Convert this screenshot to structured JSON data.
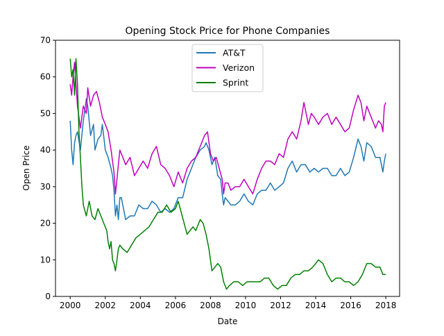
{
  "chart_data": {
    "type": "line",
    "title": "Opening Stock Price for Phone Companies",
    "xlabel": "Date",
    "ylabel": "Open Price",
    "xlim": [
      "1999-03-01",
      "2018-10-15"
    ],
    "ylim": [
      0,
      70
    ],
    "x_ticks": [
      "2000",
      "2002",
      "2004",
      "2006",
      "2008",
      "2010",
      "2012",
      "2014",
      "2016",
      "2018"
    ],
    "y_ticks": [
      "0",
      "10",
      "20",
      "30",
      "40",
      "50",
      "60",
      "70"
    ],
    "grid": false,
    "legend_position": "upper center",
    "series": [
      {
        "name": "AT&T",
        "color": "#1f77b4",
        "points": [
          [
            "2000-01-01",
            48
          ],
          [
            "2000-02-01",
            40
          ],
          [
            "2000-03-01",
            36
          ],
          [
            "2000-04-01",
            42
          ],
          [
            "2000-05-01",
            44
          ],
          [
            "2000-06-01",
            45
          ],
          [
            "2000-08-01",
            40
          ],
          [
            "2000-10-01",
            48
          ],
          [
            "2000-12-01",
            54
          ],
          [
            "2001-01-01",
            52
          ],
          [
            "2001-03-01",
            44
          ],
          [
            "2001-05-01",
            47
          ],
          [
            "2001-06-01",
            40
          ],
          [
            "2001-08-01",
            43
          ],
          [
            "2001-10-01",
            44
          ],
          [
            "2001-11-01",
            47
          ],
          [
            "2002-01-01",
            40
          ],
          [
            "2002-03-01",
            38
          ],
          [
            "2002-05-01",
            35
          ],
          [
            "2002-06-01",
            33
          ],
          [
            "2002-07-01",
            29
          ],
          [
            "2002-08-01",
            22
          ],
          [
            "2002-09-01",
            25
          ],
          [
            "2002-10-01",
            21
          ],
          [
            "2002-11-01",
            27
          ],
          [
            "2002-12-01",
            27
          ],
          [
            "2003-03-01",
            21
          ],
          [
            "2003-06-01",
            22
          ],
          [
            "2003-09-01",
            22
          ],
          [
            "2003-12-01",
            25
          ],
          [
            "2004-03-01",
            24
          ],
          [
            "2004-06-01",
            24
          ],
          [
            "2004-09-01",
            26
          ],
          [
            "2004-12-01",
            25
          ],
          [
            "2005-03-01",
            23
          ],
          [
            "2005-06-01",
            24
          ],
          [
            "2005-09-01",
            23
          ],
          [
            "2005-12-01",
            24
          ],
          [
            "2006-03-01",
            27
          ],
          [
            "2006-06-01",
            27
          ],
          [
            "2006-09-01",
            32
          ],
          [
            "2006-12-01",
            35
          ],
          [
            "2007-03-01",
            38
          ],
          [
            "2007-06-01",
            40
          ],
          [
            "2007-09-01",
            41
          ],
          [
            "2007-10-01",
            42
          ],
          [
            "2007-12-01",
            40
          ],
          [
            "2008-02-01",
            36
          ],
          [
            "2008-04-01",
            38
          ],
          [
            "2008-06-01",
            33
          ],
          [
            "2008-08-01",
            32
          ],
          [
            "2008-09-01",
            28
          ],
          [
            "2008-10-01",
            25
          ],
          [
            "2008-11-01",
            27
          ],
          [
            "2009-01-01",
            26
          ],
          [
            "2009-03-01",
            25
          ],
          [
            "2009-06-01",
            25
          ],
          [
            "2009-09-01",
            26
          ],
          [
            "2009-12-01",
            28
          ],
          [
            "2010-03-01",
            26
          ],
          [
            "2010-06-01",
            25
          ],
          [
            "2010-09-01",
            28
          ],
          [
            "2010-12-01",
            29
          ],
          [
            "2011-03-01",
            29
          ],
          [
            "2011-06-01",
            31
          ],
          [
            "2011-09-01",
            29
          ],
          [
            "2011-12-01",
            30
          ],
          [
            "2012-03-01",
            31
          ],
          [
            "2012-06-01",
            35
          ],
          [
            "2012-09-01",
            37
          ],
          [
            "2012-12-01",
            34
          ],
          [
            "2013-03-01",
            36
          ],
          [
            "2013-06-01",
            36
          ],
          [
            "2013-09-01",
            34
          ],
          [
            "2013-12-01",
            35
          ],
          [
            "2014-03-01",
            34
          ],
          [
            "2014-06-01",
            35
          ],
          [
            "2014-09-01",
            35
          ],
          [
            "2014-12-01",
            33
          ],
          [
            "2015-03-01",
            33
          ],
          [
            "2015-06-01",
            35
          ],
          [
            "2015-09-01",
            33
          ],
          [
            "2015-12-01",
            34
          ],
          [
            "2016-03-01",
            38
          ],
          [
            "2016-06-01",
            43
          ],
          [
            "2016-08-01",
            41
          ],
          [
            "2016-10-01",
            37
          ],
          [
            "2016-12-01",
            42
          ],
          [
            "2017-03-01",
            41
          ],
          [
            "2017-06-01",
            38
          ],
          [
            "2017-09-01",
            38
          ],
          [
            "2017-11-01",
            34
          ],
          [
            "2017-12-01",
            37
          ],
          [
            "2018-01-01",
            39
          ]
        ]
      },
      {
        "name": "Verizon",
        "color": "#bf00bf",
        "points": [
          [
            "2000-01-01",
            58
          ],
          [
            "2000-02-01",
            55
          ],
          [
            "2000-03-01",
            60
          ],
          [
            "2000-04-01",
            64
          ],
          [
            "2000-05-01",
            58
          ],
          [
            "2000-06-01",
            52
          ],
          [
            "2000-08-01",
            46
          ],
          [
            "2000-10-01",
            52
          ],
          [
            "2000-12-01",
            50
          ],
          [
            "2001-01-01",
            57
          ],
          [
            "2001-03-01",
            52
          ],
          [
            "2001-05-01",
            55
          ],
          [
            "2001-07-01",
            56
          ],
          [
            "2001-09-01",
            53
          ],
          [
            "2001-11-01",
            49
          ],
          [
            "2002-01-01",
            47
          ],
          [
            "2002-03-01",
            45
          ],
          [
            "2002-05-01",
            40
          ],
          [
            "2002-07-01",
            34
          ],
          [
            "2002-08-01",
            28
          ],
          [
            "2002-09-01",
            32
          ],
          [
            "2002-10-01",
            36
          ],
          [
            "2002-11-01",
            40
          ],
          [
            "2002-12-01",
            39
          ],
          [
            "2003-03-01",
            36
          ],
          [
            "2003-06-01",
            38
          ],
          [
            "2003-09-01",
            33
          ],
          [
            "2003-12-01",
            35
          ],
          [
            "2004-03-01",
            37
          ],
          [
            "2004-06-01",
            35
          ],
          [
            "2004-09-01",
            39
          ],
          [
            "2004-12-01",
            41
          ],
          [
            "2005-03-01",
            36
          ],
          [
            "2005-06-01",
            35
          ],
          [
            "2005-09-01",
            33
          ],
          [
            "2005-12-01",
            30
          ],
          [
            "2006-03-01",
            34
          ],
          [
            "2006-06-01",
            31
          ],
          [
            "2006-09-01",
            35
          ],
          [
            "2006-12-01",
            37
          ],
          [
            "2007-03-01",
            38
          ],
          [
            "2007-06-01",
            41
          ],
          [
            "2007-09-01",
            44
          ],
          [
            "2007-11-01",
            45
          ],
          [
            "2008-01-01",
            39
          ],
          [
            "2008-03-01",
            37
          ],
          [
            "2008-05-01",
            38
          ],
          [
            "2008-07-01",
            35
          ],
          [
            "2008-09-01",
            32
          ],
          [
            "2008-10-01",
            28
          ],
          [
            "2008-11-01",
            31
          ],
          [
            "2009-01-01",
            31
          ],
          [
            "2009-03-01",
            29
          ],
          [
            "2009-06-01",
            30
          ],
          [
            "2009-09-01",
            30
          ],
          [
            "2009-12-01",
            32
          ],
          [
            "2010-03-01",
            30
          ],
          [
            "2010-06-01",
            28
          ],
          [
            "2010-09-01",
            32
          ],
          [
            "2010-12-01",
            35
          ],
          [
            "2011-03-01",
            37
          ],
          [
            "2011-06-01",
            37
          ],
          [
            "2011-09-01",
            36
          ],
          [
            "2011-12-01",
            39
          ],
          [
            "2012-03-01",
            38
          ],
          [
            "2012-06-01",
            43
          ],
          [
            "2012-09-01",
            45
          ],
          [
            "2012-12-01",
            43
          ],
          [
            "2013-03-01",
            48
          ],
          [
            "2013-05-01",
            53
          ],
          [
            "2013-08-01",
            47
          ],
          [
            "2013-10-01",
            50
          ],
          [
            "2013-12-01",
            49
          ],
          [
            "2014-03-01",
            47
          ],
          [
            "2014-06-01",
            49
          ],
          [
            "2014-09-01",
            50
          ],
          [
            "2014-12-01",
            47
          ],
          [
            "2015-03-01",
            49
          ],
          [
            "2015-06-01",
            47
          ],
          [
            "2015-09-01",
            45
          ],
          [
            "2015-12-01",
            46
          ],
          [
            "2016-03-01",
            51
          ],
          [
            "2016-06-01",
            55
          ],
          [
            "2016-08-01",
            53
          ],
          [
            "2016-10-01",
            48
          ],
          [
            "2016-12-01",
            52
          ],
          [
            "2017-03-01",
            49
          ],
          [
            "2017-06-01",
            46
          ],
          [
            "2017-08-01",
            48
          ],
          [
            "2017-10-01",
            47
          ],
          [
            "2017-11-01",
            45
          ],
          [
            "2017-12-01",
            52
          ],
          [
            "2018-01-01",
            53
          ]
        ]
      },
      {
        "name": "Sprint",
        "color": "#008000",
        "points": [
          [
            "2000-01-01",
            65
          ],
          [
            "2000-02-01",
            60
          ],
          [
            "2000-03-01",
            62
          ],
          [
            "2000-04-01",
            55
          ],
          [
            "2000-05-01",
            65
          ],
          [
            "2000-06-01",
            58
          ],
          [
            "2000-07-01",
            45
          ],
          [
            "2000-08-01",
            38
          ],
          [
            "2000-09-01",
            30
          ],
          [
            "2000-10-01",
            25
          ],
          [
            "2000-12-01",
            22
          ],
          [
            "2001-02-01",
            26
          ],
          [
            "2001-04-01",
            22
          ],
          [
            "2001-06-01",
            21
          ],
          [
            "2001-08-01",
            24
          ],
          [
            "2001-10-01",
            22
          ],
          [
            "2001-12-01",
            20
          ],
          [
            "2002-02-01",
            18
          ],
          [
            "2002-03-01",
            15
          ],
          [
            "2002-04-01",
            13
          ],
          [
            "2002-05-01",
            15
          ],
          [
            "2002-06-01",
            10
          ],
          [
            "2002-07-01",
            9
          ],
          [
            "2002-08-01",
            7
          ],
          [
            "2002-09-01",
            10
          ],
          [
            "2002-10-01",
            13
          ],
          [
            "2002-11-01",
            14
          ],
          [
            "2003-01-01",
            13
          ],
          [
            "2003-04-01",
            12
          ],
          [
            "2003-07-01",
            14
          ],
          [
            "2003-10-01",
            16
          ],
          [
            "2004-01-01",
            17
          ],
          [
            "2004-04-01",
            18
          ],
          [
            "2004-07-01",
            19
          ],
          [
            "2004-10-01",
            21
          ],
          [
            "2005-01-01",
            23
          ],
          [
            "2005-04-01",
            23
          ],
          [
            "2005-07-01",
            25
          ],
          [
            "2005-10-01",
            23
          ],
          [
            "2006-01-01",
            24
          ],
          [
            "2006-03-01",
            26
          ],
          [
            "2006-05-01",
            23
          ],
          [
            "2006-07-01",
            20
          ],
          [
            "2006-09-01",
            17
          ],
          [
            "2006-11-01",
            18
          ],
          [
            "2007-01-01",
            19
          ],
          [
            "2007-03-01",
            18
          ],
          [
            "2007-06-01",
            21
          ],
          [
            "2007-08-01",
            20
          ],
          [
            "2007-10-01",
            17
          ],
          [
            "2007-12-01",
            13
          ],
          [
            "2008-02-01",
            7
          ],
          [
            "2008-04-01",
            8
          ],
          [
            "2008-06-01",
            9
          ],
          [
            "2008-08-01",
            8
          ],
          [
            "2008-10-01",
            4
          ],
          [
            "2008-12-01",
            2
          ],
          [
            "2009-02-01",
            3
          ],
          [
            "2009-05-01",
            4
          ],
          [
            "2009-08-01",
            4
          ],
          [
            "2009-11-01",
            3
          ],
          [
            "2010-02-01",
            4
          ],
          [
            "2010-05-01",
            4
          ],
          [
            "2010-08-01",
            4
          ],
          [
            "2010-11-01",
            4
          ],
          [
            "2011-02-01",
            5
          ],
          [
            "2011-05-01",
            5
          ],
          [
            "2011-08-01",
            3
          ],
          [
            "2011-11-01",
            2
          ],
          [
            "2012-02-01",
            3
          ],
          [
            "2012-05-01",
            3
          ],
          [
            "2012-08-01",
            5
          ],
          [
            "2012-11-01",
            6
          ],
          [
            "2013-02-01",
            6
          ],
          [
            "2013-05-01",
            7
          ],
          [
            "2013-08-01",
            7
          ],
          [
            "2013-11-01",
            8
          ],
          [
            "2014-01-01",
            9
          ],
          [
            "2014-03-01",
            10
          ],
          [
            "2014-06-01",
            9
          ],
          [
            "2014-09-01",
            6
          ],
          [
            "2014-12-01",
            4
          ],
          [
            "2015-03-01",
            5
          ],
          [
            "2015-06-01",
            5
          ],
          [
            "2015-09-01",
            4
          ],
          [
            "2015-12-01",
            4
          ],
          [
            "2016-03-01",
            3
          ],
          [
            "2016-06-01",
            4
          ],
          [
            "2016-09-01",
            6
          ],
          [
            "2016-12-01",
            9
          ],
          [
            "2017-03-01",
            9
          ],
          [
            "2017-06-01",
            8
          ],
          [
            "2017-09-01",
            8
          ],
          [
            "2017-11-01",
            6
          ],
          [
            "2018-01-01",
            6
          ]
        ]
      }
    ]
  }
}
